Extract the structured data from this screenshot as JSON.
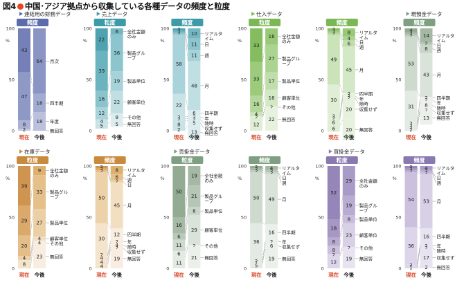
{
  "figure": {
    "prefix": "図4",
    "title": "中国･アジア拠点から収集している各種データの頻度と粒度"
  },
  "colors": {
    "blue": {
      "accent": "#5c6cab",
      "dark": [
        "#7580b8",
        "#8f99c6",
        "#aab1d4",
        "#c3c8e1",
        "#dadde9"
      ],
      "light": [
        "#8a95c4",
        "#a2abd1",
        "#bac0de",
        "#d0d4e8",
        "#e3e5ef"
      ]
    },
    "teal": {
      "accent": "#3d9aa7",
      "dark": [
        "#4fa3b0",
        "#6bb3be",
        "#8ac3cc",
        "#a9d3da",
        "#c9e2e6"
      ],
      "light": [
        "#72b7c1",
        "#8cc5cd",
        "#a6d2d9",
        "#c0dfe3",
        "#dbecef"
      ]
    },
    "green": {
      "accent": "#7bb855",
      "dark": [
        "#84bd5f",
        "#9ccb7c",
        "#b3d79a",
        "#cae3b8",
        "#e0eed5"
      ],
      "light": [
        "#98c977",
        "#acd491",
        "#c0deab",
        "#d3e8c5",
        "#e6f2de"
      ]
    },
    "gray": {
      "accent": "#7f9f82",
      "dark": [
        "#92ab92",
        "#a6baa6",
        "#bacaba",
        "#cfdacf",
        "#e3e9e3"
      ],
      "light": [
        "#a4b8a4",
        "#b6c6b6",
        "#c8d5c8",
        "#dae3da",
        "#ebf0eb"
      ]
    },
    "orange": {
      "accent": "#c98a3e",
      "dark": [
        "#cf9550",
        "#dba96b",
        "#e4bd88",
        "#ecd1a9",
        "#f4e4cc"
      ],
      "light": [
        "#ddb070",
        "#e5c089",
        "#ecd0a5",
        "#f2dfc2",
        "#f8ede0"
      ]
    },
    "purple": {
      "accent": "#8a78b0",
      "dark": [
        "#9585b8",
        "#a797c4",
        "#b9abd0",
        "#cbc0dd",
        "#ddd6ea"
      ],
      "light": [
        "#a99bc7",
        "#b8acd1",
        "#c8bedb",
        "#d8d0e6",
        "#e8e3f0"
      ]
    }
  },
  "chart_data": [
    {
      "type": "bar",
      "group": "連結用の財務データ",
      "tab": "頻度",
      "palette": "blue",
      "categories": [
        "現在",
        "今後"
      ],
      "series": [
        {
          "name": "月次",
          "values": [
            43,
            64
          ]
        },
        {
          "name": "四半期",
          "values": [
            47,
            18
          ]
        },
        {
          "name": "年度",
          "values": [
            8,
            18
          ]
        },
        {
          "name": "無回答",
          "values": [
            2,
            0
          ]
        }
      ],
      "ylabel": "%",
      "ylim": [
        0,
        100
      ],
      "yticks": [
        0,
        50,
        100
      ]
    },
    {
      "type": "bar",
      "group": "売上データ",
      "tab": "粒度",
      "palette": "teal",
      "categories": [
        "現在",
        "今後"
      ],
      "series": [
        {
          "name": "全社金額のみ",
          "values": [
            22,
            6
          ]
        },
        {
          "name": "製品グループ",
          "values": [
            39,
            36
          ]
        },
        {
          "name": "製品単位",
          "values": [
            16,
            19
          ]
        },
        {
          "name": "顧客単位",
          "values": [
            12,
            22
          ]
        },
        {
          "name": "その他",
          "values": [
            4,
            8
          ]
        },
        {
          "name": "無回答",
          "values": [
            5,
            5
          ]
        }
      ],
      "ylabel": "%",
      "ylim": [
        0,
        100
      ],
      "yticks": [
        0,
        50,
        100
      ]
    },
    {
      "type": "bar",
      "group": "",
      "tab": "頻度",
      "palette": "teal",
      "categories": [
        "現在",
        "今後"
      ],
      "series": [
        {
          "name": "リアルタイム",
          "values": [
            2,
            10
          ]
        },
        {
          "name": "日",
          "values": [
            2,
            11
          ]
        },
        {
          "name": "週",
          "values": [
            2,
            11
          ]
        },
        {
          "name": "月",
          "values": [
            58,
            48
          ]
        },
        {
          "name": "四半期",
          "values": [
            22,
            6
          ]
        },
        {
          "name": "年",
          "values": [
            2,
            2
          ]
        },
        {
          "name": "随時",
          "values": [
            2,
            2
          ]
        },
        {
          "name": "収集せず",
          "values": [
            8,
            5
          ]
        },
        {
          "name": "無回答",
          "values": [
            2,
            13
          ]
        }
      ],
      "ylabel": "%",
      "ylim": [
        0,
        100
      ],
      "yticks": [
        0,
        50,
        100
      ]
    },
    {
      "type": "bar",
      "group": "仕入データ",
      "tab": "粒度",
      "palette": "green",
      "categories": [
        "現在",
        "今後"
      ],
      "series": [
        {
          "name": "全社金額のみ",
          "values": [
            33,
            16
          ]
        },
        {
          "name": "製品グループ",
          "values": [
            33,
            27
          ]
        },
        {
          "name": "製品単位",
          "values": [
            16,
            17
          ]
        },
        {
          "name": "顧客単位",
          "values": [
            4,
            16
          ]
        },
        {
          "name": "その他",
          "values": [
            2,
            2
          ]
        },
        {
          "name": "無回答",
          "values": [
            12,
            22
          ]
        }
      ],
      "ylabel": "%",
      "ylim": [
        0,
        100
      ],
      "yticks": [
        0,
        50,
        100
      ]
    },
    {
      "type": "bar",
      "group": "",
      "tab": "頻度",
      "palette": "green",
      "categories": [
        "現在",
        "今後"
      ],
      "series": [
        {
          "name": "リアルタイム",
          "values": [
            2,
            8
          ]
        },
        {
          "name": "日",
          "values": [
            2,
            4
          ]
        },
        {
          "name": "週",
          "values": [
            2,
            6
          ]
        },
        {
          "name": "月",
          "values": [
            49,
            45
          ]
        },
        {
          "name": "四半期",
          "values": [
            30,
            2
          ]
        },
        {
          "name": "年",
          "values": [
            2,
            2
          ]
        },
        {
          "name": "随時",
          "values": [
            2,
            2
          ]
        },
        {
          "name": "収集せず",
          "values": [
            6,
            20
          ]
        },
        {
          "name": "無回答",
          "values": [
            6,
            20
          ]
        }
      ],
      "ylabel": "%",
      "ylim": [
        0,
        100
      ],
      "yticks": [
        0,
        50,
        100
      ]
    },
    {
      "type": "bar",
      "group": "現預金データ",
      "tab": "頻度",
      "palette": "gray",
      "categories": [
        "現在",
        "今後"
      ],
      "series": [
        {
          "name": "リアルタイム",
          "values": [
            4,
            14
          ]
        },
        {
          "name": "日",
          "values": [
            2,
            2
          ]
        },
        {
          "name": "週",
          "values": [
            2,
            8
          ]
        },
        {
          "name": "月",
          "values": [
            53,
            43
          ]
        },
        {
          "name": "四半期",
          "values": [
            31,
            2
          ]
        },
        {
          "name": "年",
          "values": [
            2,
            2
          ]
        },
        {
          "name": "随時",
          "values": [
            2,
            8
          ]
        },
        {
          "name": "収集せず",
          "values": [
            2,
            2
          ]
        },
        {
          "name": "無回答",
          "values": [
            2,
            13
          ]
        }
      ],
      "ylabel": "%",
      "ylim": [
        0,
        100
      ],
      "yticks": [
        0,
        50,
        100
      ]
    },
    {
      "type": "bar",
      "group": "在庫データ",
      "tab": "粒度",
      "palette": "orange",
      "categories": [
        "現在",
        "今後"
      ],
      "series": [
        {
          "name": "全社金額のみ",
          "values": [
            39,
            9
          ]
        },
        {
          "name": "製品グループ",
          "values": [
            29,
            33
          ]
        },
        {
          "name": "製品単位",
          "values": [
            20,
            27
          ]
        },
        {
          "name": "顧客単位",
          "values": [
            4,
            4
          ]
        },
        {
          "name": "その他",
          "values": [
            8,
            4
          ]
        },
        {
          "name": "無回答",
          "values": [
            0,
            23
          ]
        }
      ],
      "ylabel": "%",
      "ylim": [
        0,
        100
      ],
      "yticks": [
        0,
        50,
        100
      ]
    },
    {
      "type": "bar",
      "group": "",
      "tab": "頻度",
      "palette": "orange",
      "categories": [
        "現在",
        "今後"
      ],
      "series": [
        {
          "name": "リアルタイム",
          "values": [
            2,
            8
          ]
        },
        {
          "name": "週",
          "values": [
            2,
            6
          ]
        },
        {
          "name": "日",
          "values": [
            2,
            2
          ]
        },
        {
          "name": "月",
          "values": [
            50,
            45
          ]
        },
        {
          "name": "四半期",
          "values": [
            30,
            12
          ]
        },
        {
          "name": "年",
          "values": [
            2,
            2
          ]
        },
        {
          "name": "随時",
          "values": [
            4,
            4
          ]
        },
        {
          "name": "収集せず",
          "values": [
            4,
            2
          ]
        },
        {
          "name": "無回答",
          "values": [
            4,
            19
          ]
        }
      ],
      "ylabel": "%",
      "ylim": [
        0,
        100
      ],
      "yticks": [
        0,
        50,
        100
      ]
    },
    {
      "type": "bar",
      "group": "売掛金データ",
      "tab": "粒度",
      "palette": "gray",
      "categories": [
        "現在",
        "今後"
      ],
      "series": [
        {
          "name": "全社金額のみ",
          "values": [
            50,
            19
          ]
        },
        {
          "name": "製品グループ",
          "values": [
            16,
            21
          ]
        },
        {
          "name": "製品単位",
          "values": [
            6,
            8
          ]
        },
        {
          "name": "顧客単位",
          "values": [
            11,
            29
          ]
        },
        {
          "name": "その他",
          "values": [
            6,
            2
          ]
        },
        {
          "name": "無回答",
          "values": [
            11,
            21
          ]
        }
      ],
      "ylabel": "%",
      "ylim": [
        0,
        100
      ],
      "yticks": [
        0,
        50,
        100
      ]
    },
    {
      "type": "bar",
      "group": "",
      "tab": "頻度",
      "palette": "gray",
      "categories": [
        "現在",
        "今後"
      ],
      "series": [
        {
          "name": "リアルタイム",
          "values": [
            2,
            4
          ]
        },
        {
          "name": "日",
          "values": [
            2,
            2
          ]
        },
        {
          "name": "週",
          "values": [
            2,
            2
          ]
        },
        {
          "name": "月",
          "values": [
            50,
            49
          ]
        },
        {
          "name": "四半期",
          "values": [
            36,
            16
          ]
        },
        {
          "name": "年",
          "values": [
            2,
            2
          ]
        },
        {
          "name": "収集せず",
          "values": [
            1,
            6
          ]
        },
        {
          "name": "無回答",
          "values": [
            5,
            19
          ]
        }
      ],
      "ylabel": "%",
      "ylim": [
        0,
        100
      ],
      "yticks": [
        0,
        50,
        100
      ]
    },
    {
      "type": "bar",
      "group": "買掛金データ",
      "tab": "粒度",
      "palette": "purple",
      "categories": [
        "現在",
        "今後"
      ],
      "series": [
        {
          "name": "全社金額のみ",
          "values": [
            52,
            29
          ]
        },
        {
          "name": "製品グループ",
          "values": [
            18,
            19
          ]
        },
        {
          "name": "製品単位",
          "values": [
            8,
            8
          ]
        },
        {
          "name": "顧客単位",
          "values": [
            8,
            23
          ]
        },
        {
          "name": "その他",
          "values": [
            2,
            2
          ]
        },
        {
          "name": "無回答",
          "values": [
            12,
            19
          ]
        }
      ],
      "ylabel": "%",
      "ylim": [
        0,
        100
      ],
      "yticks": [
        0,
        50,
        100
      ]
    },
    {
      "type": "bar",
      "group": "",
      "tab": "頻度",
      "palette": "purple",
      "categories": [
        "現在",
        "今後"
      ],
      "series": [
        {
          "name": "リアルタイム",
          "values": [
            2,
            4
          ]
        },
        {
          "name": "日",
          "values": [
            2,
            2
          ]
        },
        {
          "name": "週",
          "values": [
            2,
            2
          ]
        },
        {
          "name": "月",
          "values": [
            54,
            53
          ]
        },
        {
          "name": "四半期",
          "values": [
            36,
            16
          ]
        },
        {
          "name": "年",
          "values": [
            2,
            2
          ]
        },
        {
          "name": "随時",
          "values": [
            1,
            2
          ]
        },
        {
          "name": "収集せず",
          "values": [
            1,
            17
          ]
        },
        {
          "name": "無回答",
          "values": [
            0,
            2
          ]
        }
      ],
      "ylabel": "%",
      "ylim": [
        0,
        100
      ],
      "yticks": [
        0,
        50,
        100
      ]
    }
  ]
}
